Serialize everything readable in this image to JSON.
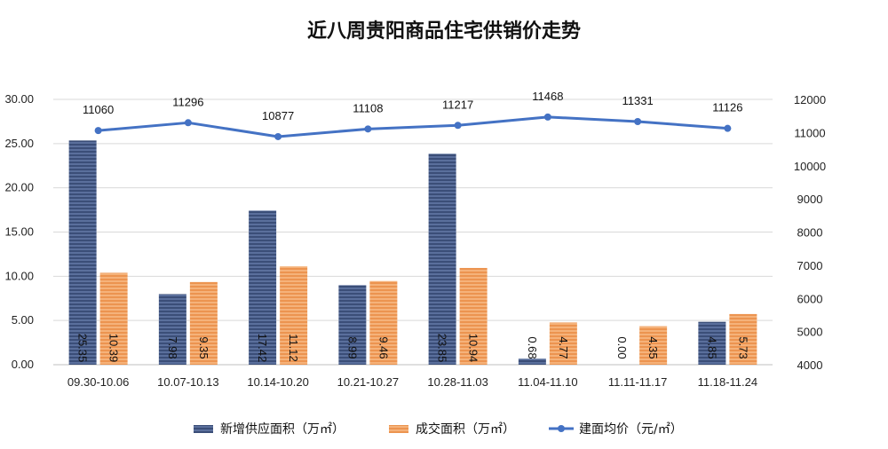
{
  "chart_data": {
    "type": "bar",
    "title": "近八周贵阳商品住宅供销价走势",
    "categories": [
      "09.30-10.06",
      "10.07-10.13",
      "10.14-10.20",
      "10.21-10.27",
      "10.28-11.03",
      "11.04-11.10",
      "11.11-11.17",
      "11.18-11.24"
    ],
    "series": [
      {
        "name": "新增供应面积（万㎡）",
        "type": "bar",
        "axis": "left",
        "color": "#4a5f8c",
        "values": [
          25.35,
          7.98,
          17.42,
          8.99,
          23.85,
          0.68,
          0.0,
          4.85
        ],
        "labels": [
          "25.35",
          "7.98",
          "17.42",
          "8.99",
          "23.85",
          "0.68",
          "0.00",
          "4.85"
        ]
      },
      {
        "name": "成交面积（万㎡）",
        "type": "bar",
        "axis": "left",
        "color": "#f0a060",
        "values": [
          10.39,
          9.35,
          11.12,
          9.46,
          10.94,
          4.77,
          4.35,
          5.73
        ],
        "labels": [
          "10.39",
          "9.35",
          "11.12",
          "9.46",
          "10.94",
          "4.77",
          "4.35",
          "5.73"
        ]
      },
      {
        "name": "建面均价（元/㎡）",
        "type": "line",
        "axis": "right",
        "color": "#4472c4",
        "values": [
          11060,
          11296,
          10877,
          11108,
          11217,
          11468,
          11331,
          11126
        ],
        "labels": [
          "11060",
          "11296",
          "10877",
          "11108",
          "11217",
          "11468",
          "11331",
          "11126"
        ]
      }
    ],
    "y_left": {
      "range": [
        0,
        30
      ],
      "ticks": [
        "0.00",
        "5.00",
        "10.00",
        "15.00",
        "20.00",
        "25.00",
        "30.00"
      ],
      "tick_values": [
        0,
        5,
        10,
        15,
        20,
        25,
        30
      ]
    },
    "y_right": {
      "range": [
        4000,
        12000
      ],
      "ticks": [
        "4000",
        "5000",
        "6000",
        "7000",
        "8000",
        "9000",
        "10000",
        "11000",
        "12000"
      ],
      "tick_values": [
        4000,
        5000,
        6000,
        7000,
        8000,
        9000,
        10000,
        11000,
        12000
      ]
    },
    "grid": true,
    "legend_position": "bottom"
  }
}
